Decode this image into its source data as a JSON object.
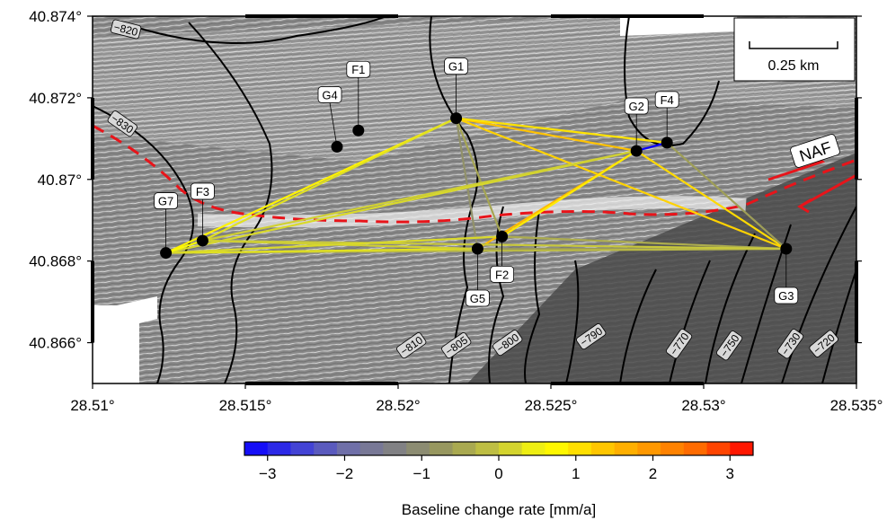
{
  "map": {
    "lon_range": [
      28.51,
      28.535
    ],
    "lat_range": [
      40.865,
      40.874
    ],
    "x_ticks": [
      {
        "value": 28.51,
        "label": "28.51°"
      },
      {
        "value": 28.515,
        "label": "28.515°"
      },
      {
        "value": 28.52,
        "label": "28.52°"
      },
      {
        "value": 28.525,
        "label": "28.525°"
      },
      {
        "value": 28.53,
        "label": "28.53°"
      },
      {
        "value": 28.535,
        "label": "28.535°"
      }
    ],
    "y_ticks": [
      {
        "value": 40.874,
        "label": "40.874°"
      },
      {
        "value": 40.872,
        "label": "40.872°"
      },
      {
        "value": 40.87,
        "label": "40.87°"
      },
      {
        "value": 40.868,
        "label": "40.868°"
      },
      {
        "value": 40.866,
        "label": "40.866°"
      }
    ],
    "scale_bar_label": "0.25 km",
    "fault_label": "NAF",
    "fault_color": "#e8141a",
    "contour_labels": [
      "−820",
      "−830",
      "−810",
      "−805",
      "−800",
      "−790",
      "−770",
      "−750",
      "−730",
      "−720"
    ],
    "stations": [
      {
        "id": "G1",
        "lon": 28.5219,
        "lat": 40.8715
      },
      {
        "id": "G2",
        "lon": 28.5278,
        "lat": 40.8707
      },
      {
        "id": "G3",
        "lon": 28.5327,
        "lat": 40.8683
      },
      {
        "id": "G4",
        "lon": 28.518,
        "lat": 40.8708
      },
      {
        "id": "G5",
        "lon": 28.5226,
        "lat": 40.8683
      },
      {
        "id": "G7",
        "lon": 28.5124,
        "lat": 40.8682
      },
      {
        "id": "F1",
        "lon": 28.5187,
        "lat": 40.8712
      },
      {
        "id": "F2",
        "lon": 28.5234,
        "lat": 40.8686
      },
      {
        "id": "F3",
        "lon": 28.5136,
        "lat": 40.8685
      },
      {
        "id": "F4",
        "lon": 28.5288,
        "lat": 40.8709
      }
    ],
    "baselines": [
      {
        "from": "G1",
        "to": "G2",
        "rate": 1.4
      },
      {
        "from": "G1",
        "to": "G3",
        "rate": 1.2
      },
      {
        "from": "G1",
        "to": "G5",
        "rate": -0.9
      },
      {
        "from": "G1",
        "to": "G7",
        "rate": 0.8
      },
      {
        "from": "G1",
        "to": "F2",
        "rate": -0.5
      },
      {
        "from": "G1",
        "to": "F3",
        "rate": 0.3
      },
      {
        "from": "G1",
        "to": "F4",
        "rate": 1.0
      },
      {
        "from": "G2",
        "to": "G3",
        "rate": 1.1
      },
      {
        "from": "G2",
        "to": "G5",
        "rate": 1.5
      },
      {
        "from": "G2",
        "to": "G7",
        "rate": 0.2
      },
      {
        "from": "G2",
        "to": "F2",
        "rate": 0.9
      },
      {
        "from": "G2",
        "to": "F3",
        "rate": 0.1
      },
      {
        "from": "G2",
        "to": "F4",
        "rate": -3.3
      },
      {
        "from": "G3",
        "to": "G5",
        "rate": -0.7
      },
      {
        "from": "G3",
        "to": "G7",
        "rate": -0.2
      },
      {
        "from": "G3",
        "to": "F2",
        "rate": -0.4
      },
      {
        "from": "G3",
        "to": "F3",
        "rate": 0.0
      },
      {
        "from": "G3",
        "to": "F4",
        "rate": -0.6
      },
      {
        "from": "G5",
        "to": "G7",
        "rate": 0.3
      },
      {
        "from": "G5",
        "to": "F3",
        "rate": 0.1
      },
      {
        "from": "G7",
        "to": "F2",
        "rate": 0.2
      },
      {
        "from": "G7",
        "to": "F3",
        "rate": 0.6
      }
    ]
  },
  "colorbar": {
    "min": -3.3,
    "max": 3.3,
    "ticks": [
      {
        "value": -3,
        "label": "−3"
      },
      {
        "value": -2,
        "label": "−2"
      },
      {
        "value": -1,
        "label": "−1"
      },
      {
        "value": 0,
        "label": "0"
      },
      {
        "value": 1,
        "label": "1"
      },
      {
        "value": 2,
        "label": "2"
      },
      {
        "value": 3,
        "label": "3"
      }
    ],
    "label": "Baseline change rate [mm/a]",
    "stops": [
      "#0a00ff",
      "#3c3cdc",
      "#6e6eaa",
      "#828282",
      "#9a9a5a",
      "#c8c83c",
      "#ffff00",
      "#ffc800",
      "#ff9600",
      "#ff6400",
      "#ff0000"
    ]
  }
}
